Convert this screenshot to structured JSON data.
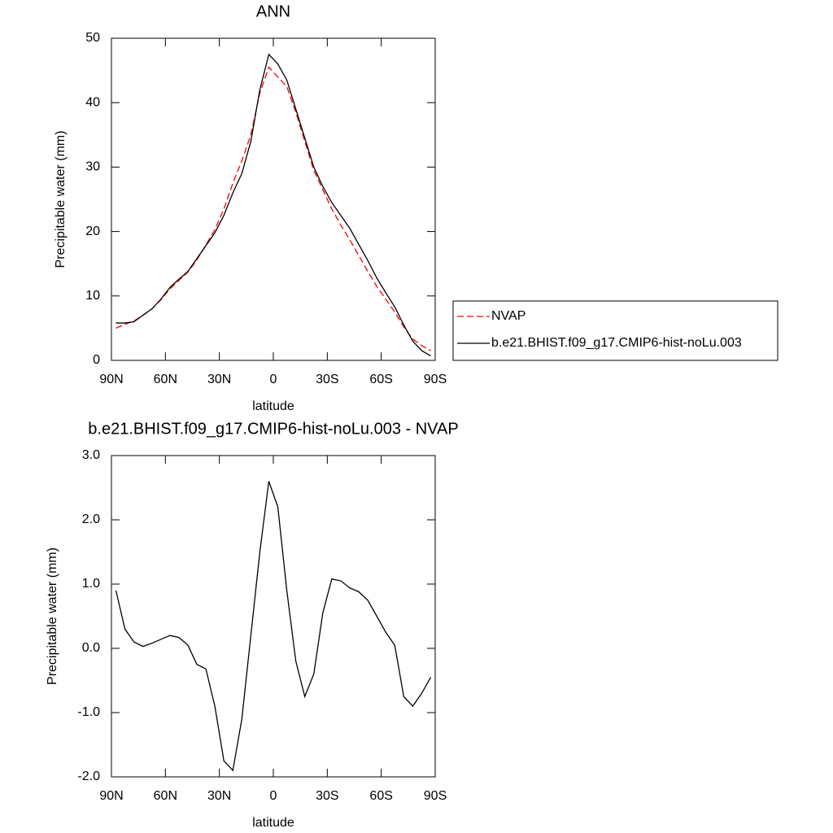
{
  "chart_data": [
    {
      "type": "line",
      "title": "ANN",
      "x_label": "latitude",
      "y_label": "Precipitable water (mm)",
      "x": [
        87.5,
        82.5,
        77.5,
        72.5,
        67.5,
        62.5,
        57.5,
        52.5,
        47.5,
        42.5,
        37.5,
        32.5,
        27.5,
        22.5,
        17.5,
        12.5,
        7.5,
        2.5,
        -2.5,
        -7.5,
        -12.5,
        -17.5,
        -22.5,
        -27.5,
        -32.5,
        -37.5,
        -42.5,
        -47.5,
        -52.5,
        -57.5,
        -62.5,
        -67.5,
        -72.5,
        -77.5,
        -82.5,
        -87.5
      ],
      "series": [
        {
          "name": "NVAP",
          "color": "#ff0000",
          "dashed": true,
          "values": [
            5.0,
            5.6,
            6.1,
            7.0,
            8.0,
            9.4,
            11.1,
            12.4,
            13.7,
            15.6,
            17.9,
            20.3,
            23.5,
            27.5,
            31,
            35,
            41.5,
            45.5,
            44,
            42.5,
            38.5,
            34,
            29.5,
            26.5,
            23.5,
            21,
            18.7,
            16.3,
            13.8,
            11.5,
            9.5,
            7.5,
            5.2,
            3.3,
            2.3,
            1.5
          ]
        },
        {
          "name": "b.e21.BHIST.f09_g17.CMIP6-hist-noLu.003",
          "color": "#000000",
          "dashed": false,
          "values": [
            5.8,
            5.8,
            6.0,
            7.0,
            8.0,
            9.5,
            11.3,
            12.6,
            13.8,
            15.8,
            17.8,
            19.8,
            22.5,
            26,
            29,
            34,
            42,
            47.5,
            46,
            43.5,
            39,
            34.5,
            30,
            27,
            24.5,
            22.5,
            20.5,
            18,
            15.5,
            12.8,
            10.5,
            8.3,
            5.5,
            3,
            1.5,
            0.7
          ]
        }
      ],
      "xlim": [
        90,
        -90
      ],
      "xticks": [
        {
          "value": 90,
          "label": "90N"
        },
        {
          "value": 60,
          "label": "60N"
        },
        {
          "value": 30,
          "label": "30N"
        },
        0,
        {
          "value": -30,
          "label": "30S"
        },
        {
          "value": -60,
          "label": "60S"
        },
        {
          "value": -90,
          "label": "90S"
        }
      ],
      "ylim": [
        0,
        50
      ],
      "yticks": [
        0,
        10,
        20,
        30,
        40,
        50
      ],
      "legend": "right"
    },
    {
      "type": "line",
      "title": "b.e21.BHIST.f09_g17.CMIP6-hist-noLu.003 - NVAP",
      "x_label": "latitude",
      "y_label": "Precipitable water (mm)",
      "x": [
        87.5,
        82.5,
        77.5,
        72.5,
        67.5,
        62.5,
        57.5,
        52.5,
        47.5,
        42.5,
        37.5,
        32.5,
        27.5,
        22.5,
        17.5,
        12.5,
        7.5,
        2.5,
        -2.5,
        -7.5,
        -12.5,
        -17.5,
        -22.5,
        -27.5,
        -32.5,
        -37.5,
        -42.5,
        -47.5,
        -52.5,
        -57.5,
        -62.5,
        -67.5,
        -72.5,
        -77.5,
        -82.5,
        -87.5
      ],
      "values": [
        0.9,
        0.3,
        0.1,
        0.03,
        0.08,
        0.14,
        0.2,
        0.17,
        0.05,
        -0.25,
        -0.32,
        -0.9,
        -1.75,
        -1.9,
        -1.1,
        0.2,
        1.5,
        2.6,
        2.2,
        0.9,
        -0.2,
        -0.75,
        -0.4,
        0.55,
        1.08,
        1.05,
        0.94,
        0.88,
        0.75,
        0.5,
        0.25,
        0.05,
        -0.75,
        -0.9,
        -0.7,
        -0.45
      ],
      "color": "#000000",
      "xlim": [
        90,
        -90
      ],
      "xticks": [
        {
          "value": 90,
          "label": "90N"
        },
        {
          "value": 60,
          "label": "60N"
        },
        {
          "value": 30,
          "label": "30N"
        },
        0,
        {
          "value": -30,
          "label": "30S"
        },
        {
          "value": -60,
          "label": "60S"
        },
        {
          "value": -90,
          "label": "90S"
        }
      ],
      "ylim": [
        -2,
        3
      ],
      "yticks": [
        {
          "value": -2,
          "label": "-2.0"
        },
        {
          "value": -1,
          "label": "-1.0"
        },
        {
          "value": 0,
          "label": "0.0"
        },
        {
          "value": 1,
          "label": "1.0"
        },
        {
          "value": 2,
          "label": "2.0"
        },
        {
          "value": 3,
          "label": "3.0"
        }
      ]
    }
  ]
}
